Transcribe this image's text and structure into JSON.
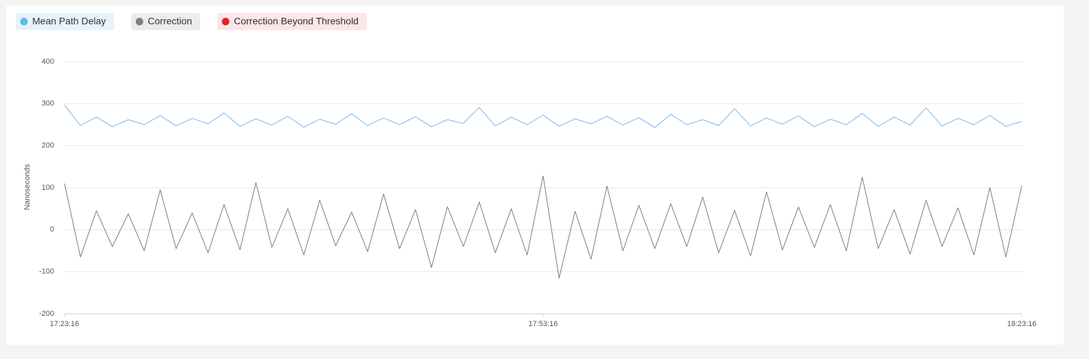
{
  "chart_data": {
    "type": "line",
    "y_label": "Nanoseconds",
    "x": [
      "17:23:16",
      "17:24:16",
      "17:25:16",
      "17:26:16",
      "17:27:16",
      "17:28:16",
      "17:29:16",
      "17:30:16",
      "17:31:16",
      "17:32:16",
      "17:33:16",
      "17:34:16",
      "17:35:16",
      "17:36:16",
      "17:37:16",
      "17:38:16",
      "17:39:16",
      "17:40:16",
      "17:41:16",
      "17:42:16",
      "17:43:16",
      "17:44:16",
      "17:45:16",
      "17:46:16",
      "17:47:16",
      "17:48:16",
      "17:49:16",
      "17:50:16",
      "17:51:16",
      "17:52:16",
      "17:53:16",
      "17:54:16",
      "17:55:16",
      "17:56:16",
      "17:57:16",
      "17:58:16",
      "17:59:16",
      "18:00:16",
      "18:01:16",
      "18:02:16",
      "18:03:16",
      "18:04:16",
      "18:05:16",
      "18:06:16",
      "18:07:16",
      "18:08:16",
      "18:09:16",
      "18:10:16",
      "18:11:16",
      "18:12:16",
      "18:13:16",
      "18:14:16",
      "18:15:16",
      "18:16:16",
      "18:17:16",
      "18:18:16",
      "18:19:16",
      "18:20:16",
      "18:21:16",
      "18:22:16",
      "18:23:16"
    ],
    "series": [
      {
        "name": "Mean Path Delay",
        "color": "#7ab3ef",
        "legend_color": "#5bbde8",
        "legend_bg": "#e6f3fa",
        "values": [
          297,
          248,
          268,
          245,
          262,
          250,
          272,
          247,
          265,
          252,
          278,
          246,
          264,
          249,
          270,
          244,
          263,
          251,
          276,
          248,
          266,
          250,
          269,
          245,
          262,
          253,
          291,
          247,
          268,
          250,
          273,
          246,
          264,
          252,
          270,
          249,
          267,
          243,
          275,
          250,
          262,
          248,
          288,
          247,
          266,
          251,
          271,
          245,
          263,
          250,
          277,
          246,
          268,
          249,
          290,
          247,
          265,
          250,
          272,
          246,
          258
        ]
      },
      {
        "name": "Correction",
        "color": "#6b7d8e",
        "legend_color": "#7f7f7f",
        "legend_bg": "#ececec",
        "values": [
          110,
          -65,
          45,
          -40,
          38,
          -50,
          95,
          -45,
          40,
          -55,
          60,
          -48,
          112,
          -42,
          50,
          -60,
          70,
          -38,
          42,
          -52,
          85,
          -45,
          48,
          -90,
          55,
          -40,
          66,
          -55,
          50,
          -60,
          128,
          -115,
          44,
          -70,
          104,
          -50,
          58,
          -45,
          62,
          -40,
          78,
          -55,
          46,
          -62,
          90,
          -48,
          54,
          -42,
          60,
          -50,
          125,
          -45,
          48,
          -58,
          70,
          -40,
          52,
          -60,
          100,
          -65,
          105
        ]
      },
      {
        "name": "Correction Beyond Threshold",
        "color": "#e8202a",
        "legend_color": "#e8202a",
        "legend_bg": "#fce6e6",
        "values": [
          null,
          null,
          null,
          null,
          null,
          null,
          null,
          null,
          null,
          null,
          null,
          null,
          null,
          null,
          null,
          null,
          null,
          null,
          null,
          null,
          null,
          null,
          null,
          null,
          null,
          null,
          null,
          null,
          null,
          null,
          null,
          null,
          null,
          null,
          null,
          null,
          null,
          null,
          null,
          null,
          null,
          null,
          null,
          null,
          null,
          null,
          null,
          null,
          null,
          null,
          null,
          null,
          null,
          null,
          null,
          null,
          null,
          null,
          null,
          null,
          null
        ]
      }
    ],
    "xlim": [
      "17:23:16",
      "18:23:16"
    ],
    "xticks": [
      "17:23:16",
      "17:53:16",
      "18:23:16"
    ],
    "ylim": [
      -200,
      400
    ],
    "yticks": [
      -200,
      -100,
      0,
      100,
      200,
      300,
      400
    ],
    "grid": true
  }
}
